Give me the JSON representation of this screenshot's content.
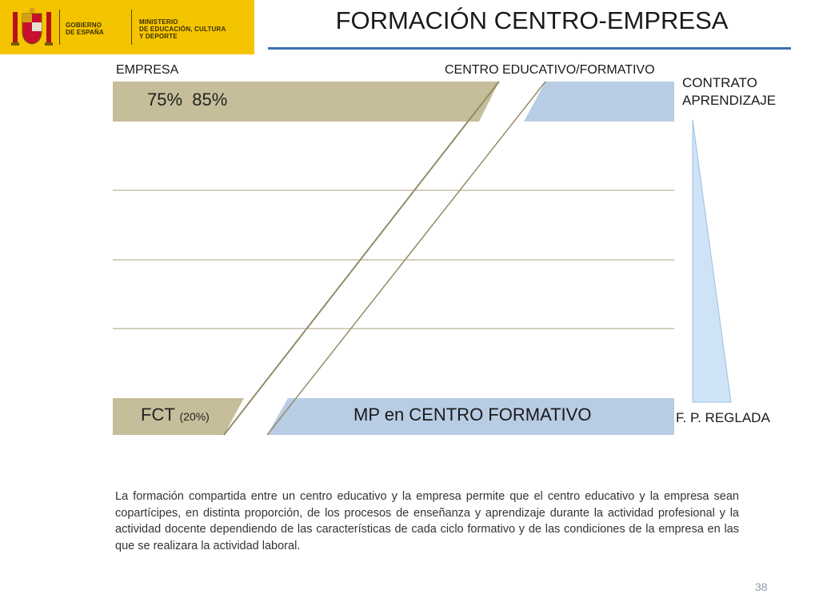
{
  "header": {
    "logo_left_text": [
      "GOBIERNO",
      "DE ESPAÑA"
    ],
    "logo_right_text": [
      "MINISTERIO",
      "DE EDUCACIÓN, CULTURA",
      "Y DEPORTE"
    ]
  },
  "title": "FORMACIÓN CENTRO-EMPRESA",
  "labels": {
    "empresa": "EMPRESA",
    "centro": "CENTRO EDUCATIVO/FORMATIVO",
    "contrato": [
      "CONTRATO",
      "APRENDIZAJE"
    ],
    "fp_reglada": "F. P. REGLADA"
  },
  "bars": {
    "top_percentages": "75%  85%",
    "fct_label": "FCT",
    "fct_pct": "(20%)",
    "mp_label": "MP en CENTRO FORMATIVO"
  },
  "paragraph": "La formación compartida entre un centro educativo y la empresa permite que el centro educativo y la empresa sean copartícipes, en distinta proporción, de los procesos de enseñanza y aprendizaje durante la actividad profesional y  la actividad docente dependiendo de las características de cada ciclo formativo y de las condiciones de la empresa en las que se realizara la actividad laboral.",
  "page_number": "38",
  "colors": {
    "empresa_band": "#c6bd9a",
    "centro_band": "#b8cce4",
    "diagonal_edge": "#958c66",
    "wedge": "#cfe3f7",
    "logo_bg": "#f5c400",
    "title_line": "#3b6fb5"
  }
}
